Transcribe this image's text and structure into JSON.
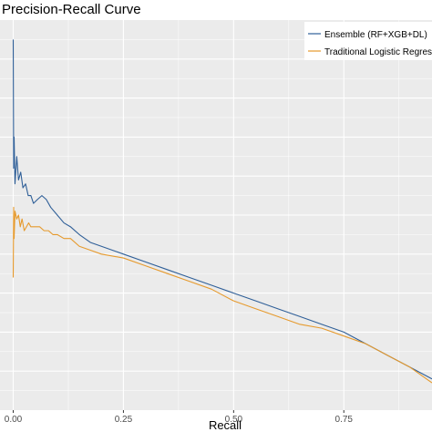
{
  "chart_data": {
    "type": "line",
    "title": "Precision-Recall Curve",
    "xlabel": "Recall",
    "ylabel": "",
    "xlim": [
      -0.03,
      0.95
    ],
    "ylim": [
      0.0,
      1.0
    ],
    "x_ticks": [
      0.0,
      0.25,
      0.5,
      0.75
    ],
    "x_tick_labels": [
      "0.00",
      "0.25",
      "0.50",
      "0.75"
    ],
    "grid": true,
    "legend_position": "top-right",
    "series": [
      {
        "name": "Ensemble (RF+XGB+DL)",
        "color": "#2f5f98",
        "points": [
          [
            0.0,
            0.95
          ],
          [
            0.001,
            0.62
          ],
          [
            0.002,
            0.7
          ],
          [
            0.004,
            0.58
          ],
          [
            0.008,
            0.65
          ],
          [
            0.012,
            0.59
          ],
          [
            0.017,
            0.61
          ],
          [
            0.022,
            0.57
          ],
          [
            0.028,
            0.58
          ],
          [
            0.034,
            0.55
          ],
          [
            0.04,
            0.55
          ],
          [
            0.046,
            0.53
          ],
          [
            0.055,
            0.54
          ],
          [
            0.065,
            0.55
          ],
          [
            0.075,
            0.54
          ],
          [
            0.085,
            0.52
          ],
          [
            0.1,
            0.5
          ],
          [
            0.115,
            0.48
          ],
          [
            0.13,
            0.47
          ],
          [
            0.15,
            0.45
          ],
          [
            0.175,
            0.43
          ],
          [
            0.2,
            0.42
          ],
          [
            0.25,
            0.4
          ],
          [
            0.3,
            0.38
          ],
          [
            0.35,
            0.36
          ],
          [
            0.4,
            0.34
          ],
          [
            0.45,
            0.32
          ],
          [
            0.5,
            0.3
          ],
          [
            0.55,
            0.28
          ],
          [
            0.6,
            0.26
          ],
          [
            0.65,
            0.24
          ],
          [
            0.7,
            0.22
          ],
          [
            0.75,
            0.2
          ],
          [
            0.8,
            0.17
          ],
          [
            0.85,
            0.14
          ],
          [
            0.9,
            0.11
          ],
          [
            0.95,
            0.08
          ]
        ]
      },
      {
        "name": "Traditional Logistic Regression",
        "color": "#e69a2d",
        "points": [
          [
            0.0,
            0.34
          ],
          [
            0.001,
            0.52
          ],
          [
            0.002,
            0.44
          ],
          [
            0.004,
            0.51
          ],
          [
            0.008,
            0.49
          ],
          [
            0.012,
            0.5
          ],
          [
            0.016,
            0.47
          ],
          [
            0.02,
            0.49
          ],
          [
            0.025,
            0.46
          ],
          [
            0.03,
            0.47
          ],
          [
            0.035,
            0.48
          ],
          [
            0.04,
            0.47
          ],
          [
            0.05,
            0.47
          ],
          [
            0.06,
            0.47
          ],
          [
            0.07,
            0.46
          ],
          [
            0.08,
            0.46
          ],
          [
            0.09,
            0.45
          ],
          [
            0.1,
            0.45
          ],
          [
            0.115,
            0.44
          ],
          [
            0.13,
            0.44
          ],
          [
            0.15,
            0.42
          ],
          [
            0.175,
            0.41
          ],
          [
            0.2,
            0.4
          ],
          [
            0.25,
            0.39
          ],
          [
            0.3,
            0.37
          ],
          [
            0.35,
            0.35
          ],
          [
            0.4,
            0.33
          ],
          [
            0.45,
            0.31
          ],
          [
            0.5,
            0.28
          ],
          [
            0.55,
            0.26
          ],
          [
            0.6,
            0.24
          ],
          [
            0.65,
            0.22
          ],
          [
            0.7,
            0.21
          ],
          [
            0.75,
            0.19
          ],
          [
            0.8,
            0.17
          ],
          [
            0.85,
            0.14
          ],
          [
            0.9,
            0.11
          ],
          [
            0.95,
            0.07
          ]
        ]
      }
    ]
  }
}
